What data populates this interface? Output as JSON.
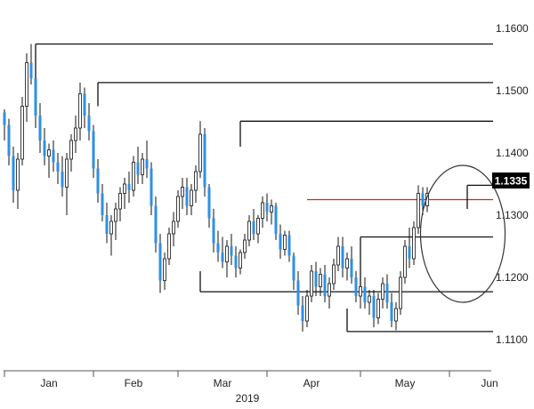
{
  "chart_data": {
    "type": "candlestick",
    "title": "",
    "xlabel": "",
    "ylabel": "",
    "x_year_label": "2019",
    "ylim": [
      1.105,
      1.164
    ],
    "xlim": [
      0,
      110
    ],
    "yticks": [
      {
        "value": 1.16,
        "label": "1.1600"
      },
      {
        "value": 1.15,
        "label": "1.1500"
      },
      {
        "value": 1.14,
        "label": "1.1400"
      },
      {
        "value": 1.13,
        "label": "1.1300"
      },
      {
        "value": 1.12,
        "label": "1.1200"
      },
      {
        "value": 1.11,
        "label": "1.1100"
      }
    ],
    "month_labels": [
      {
        "label": "Jan",
        "x": 10
      },
      {
        "label": "Feb",
        "x": 29
      },
      {
        "label": "Mar",
        "x": 49
      },
      {
        "label": "Apr",
        "x": 69
      },
      {
        "label": "May",
        "x": 90
      },
      {
        "label": "Jun",
        "x": 109
      }
    ],
    "month_tick_x": [
      0,
      20,
      39,
      59,
      80,
      100
    ],
    "current_price": {
      "value": 1.1335,
      "label": "1.1335"
    },
    "levels": [
      {
        "name": "resistance-1",
        "y": 1.1575,
        "x_start": 7,
        "x_end": 117,
        "color": "#111111",
        "tick_down_to": 1.1515
      },
      {
        "name": "resistance-2",
        "y": 1.1513,
        "x_start": 21,
        "x_end": 117,
        "color": "#111111",
        "tick_down_to": 1.1475
      },
      {
        "name": "resistance-3",
        "y": 1.1451,
        "x_start": 53,
        "x_end": 117,
        "color": "#111111",
        "tick_down_to": 1.141
      },
      {
        "name": "red-level",
        "y": 1.1325,
        "x_start": 68,
        "x_end": 111,
        "color": "#e0201b",
        "tick_down_to": null
      },
      {
        "name": "range-top",
        "y": 1.1265,
        "x_start": 80,
        "x_end": 117,
        "color": "#111111",
        "tick_down_to": 1.118,
        "tick_x": 80
      },
      {
        "name": "range-bottom",
        "y": 1.1177,
        "x_start": 44,
        "x_end": 117,
        "color": "#111111",
        "tick_up_to": 1.121,
        "tick_x": 44
      },
      {
        "name": "support-low",
        "y": 1.1113,
        "x_start": 77,
        "x_end": 117,
        "color": "#111111",
        "tick_up_to": 1.115,
        "tick_x": 77
      },
      {
        "name": "current-box-line",
        "y": 1.1348,
        "x_start": 104,
        "x_end": 110,
        "color": "#111111",
        "tick_down_to": 1.131,
        "tick_x": 104
      }
    ],
    "ellipse": {
      "cx": 103,
      "cy": 1.127,
      "rx": 9.5,
      "ry": 0.011
    },
    "candle_colors": {
      "up": "#ffffff",
      "down": "#2f8fe6",
      "wick": "#111111"
    },
    "candles": [
      [
        1.1465,
        1.147,
        1.142,
        1.1445
      ],
      [
        1.1445,
        1.1455,
        1.138,
        1.1395
      ],
      [
        1.1395,
        1.141,
        1.132,
        1.134
      ],
      [
        1.134,
        1.14,
        1.131,
        1.139
      ],
      [
        1.139,
        1.149,
        1.138,
        1.1475
      ],
      [
        1.1475,
        1.156,
        1.145,
        1.1545
      ],
      [
        1.1545,
        1.1575,
        1.151,
        1.152
      ],
      [
        1.152,
        1.154,
        1.144,
        1.146
      ],
      [
        1.146,
        1.148,
        1.14,
        1.142
      ],
      [
        1.142,
        1.144,
        1.138,
        1.1395
      ],
      [
        1.1395,
        1.1415,
        1.136,
        1.1405
      ],
      [
        1.1405,
        1.142,
        1.137,
        1.1385
      ],
      [
        1.1385,
        1.14,
        1.135,
        1.137
      ],
      [
        1.137,
        1.1395,
        1.133,
        1.1345
      ],
      [
        1.1345,
        1.14,
        1.13,
        1.139
      ],
      [
        1.139,
        1.143,
        1.137,
        1.142
      ],
      [
        1.142,
        1.146,
        1.14,
        1.144
      ],
      [
        1.144,
        1.1513,
        1.142,
        1.1495
      ],
      [
        1.1495,
        1.1505,
        1.144,
        1.146
      ],
      [
        1.146,
        1.148,
        1.142,
        1.1435
      ],
      [
        1.1435,
        1.1445,
        1.136,
        1.1375
      ],
      [
        1.1375,
        1.139,
        1.132,
        1.1335
      ],
      [
        1.1335,
        1.135,
        1.129,
        1.13
      ],
      [
        1.13,
        1.132,
        1.1255,
        1.127
      ],
      [
        1.127,
        1.13,
        1.1235,
        1.129
      ],
      [
        1.129,
        1.132,
        1.126,
        1.131
      ],
      [
        1.131,
        1.1345,
        1.129,
        1.1335
      ],
      [
        1.1335,
        1.136,
        1.131,
        1.135
      ],
      [
        1.135,
        1.137,
        1.132,
        1.134
      ],
      [
        1.134,
        1.1395,
        1.133,
        1.1385
      ],
      [
        1.1385,
        1.141,
        1.135,
        1.1365
      ],
      [
        1.1365,
        1.14,
        1.135,
        1.139
      ],
      [
        1.139,
        1.142,
        1.136,
        1.1375
      ],
      [
        1.1375,
        1.1385,
        1.13,
        1.1315
      ],
      [
        1.1315,
        1.133,
        1.124,
        1.1255
      ],
      [
        1.1255,
        1.127,
        1.1175,
        1.1195
      ],
      [
        1.1195,
        1.124,
        1.118,
        1.123
      ],
      [
        1.123,
        1.128,
        1.122,
        1.127
      ],
      [
        1.127,
        1.1305,
        1.125,
        1.129
      ],
      [
        1.129,
        1.134,
        1.128,
        1.133
      ],
      [
        1.133,
        1.136,
        1.131,
        1.1345
      ],
      [
        1.1345,
        1.136,
        1.13,
        1.1315
      ],
      [
        1.1315,
        1.135,
        1.13,
        1.134
      ],
      [
        1.134,
        1.138,
        1.132,
        1.137
      ],
      [
        1.137,
        1.1451,
        1.136,
        1.143
      ],
      [
        1.143,
        1.144,
        1.133,
        1.1345
      ],
      [
        1.1345,
        1.135,
        1.128,
        1.1295
      ],
      [
        1.1295,
        1.131,
        1.124,
        1.1255
      ],
      [
        1.1255,
        1.1275,
        1.1225,
        1.124
      ],
      [
        1.124,
        1.1265,
        1.1215,
        1.1225
      ],
      [
        1.1225,
        1.126,
        1.12,
        1.125
      ],
      [
        1.125,
        1.127,
        1.122,
        1.1235
      ],
      [
        1.1235,
        1.125,
        1.12,
        1.1215
      ],
      [
        1.1215,
        1.1245,
        1.1205,
        1.124
      ],
      [
        1.124,
        1.127,
        1.123,
        1.126
      ],
      [
        1.126,
        1.13,
        1.125,
        1.129
      ],
      [
        1.129,
        1.131,
        1.126,
        1.127
      ],
      [
        1.127,
        1.13,
        1.1255,
        1.1295
      ],
      [
        1.1295,
        1.133,
        1.128,
        1.132
      ],
      [
        1.132,
        1.1335,
        1.129,
        1.1305
      ],
      [
        1.1305,
        1.1325,
        1.1285,
        1.1315
      ],
      [
        1.1315,
        1.132,
        1.126,
        1.127
      ],
      [
        1.127,
        1.1285,
        1.123,
        1.1245
      ],
      [
        1.1245,
        1.1275,
        1.1235,
        1.1268
      ],
      [
        1.1268,
        1.1275,
        1.1225,
        1.1235
      ],
      [
        1.1235,
        1.124,
        1.118,
        1.1195
      ],
      [
        1.1195,
        1.121,
        1.114,
        1.1155
      ],
      [
        1.1155,
        1.117,
        1.1113,
        1.113
      ],
      [
        1.113,
        1.118,
        1.112,
        1.117
      ],
      [
        1.117,
        1.122,
        1.116,
        1.121
      ],
      [
        1.121,
        1.1225,
        1.117,
        1.1185
      ],
      [
        1.1185,
        1.1215,
        1.117,
        1.1205
      ],
      [
        1.1205,
        1.122,
        1.116,
        1.117
      ],
      [
        1.117,
        1.12,
        1.115,
        1.119
      ],
      [
        1.119,
        1.123,
        1.118,
        1.122
      ],
      [
        1.122,
        1.1265,
        1.121,
        1.125
      ],
      [
        1.125,
        1.1265,
        1.12,
        1.1215
      ],
      [
        1.1215,
        1.124,
        1.1195,
        1.123
      ],
      [
        1.123,
        1.125,
        1.119,
        1.12
      ],
      [
        1.12,
        1.121,
        1.116,
        1.117
      ],
      [
        1.117,
        1.12,
        1.115,
        1.1185
      ],
      [
        1.1185,
        1.12,
        1.115,
        1.116
      ],
      [
        1.116,
        1.118,
        1.114,
        1.117
      ],
      [
        1.117,
        1.118,
        1.112,
        1.1135
      ],
      [
        1.1135,
        1.1175,
        1.1125,
        1.1165
      ],
      [
        1.1165,
        1.12,
        1.115,
        1.119
      ],
      [
        1.119,
        1.1205,
        1.115,
        1.116
      ],
      [
        1.116,
        1.1175,
        1.112,
        1.113
      ],
      [
        1.113,
        1.116,
        1.1115,
        1.115
      ],
      [
        1.115,
        1.121,
        1.114,
        1.12
      ],
      [
        1.12,
        1.126,
        1.119,
        1.125
      ],
      [
        1.125,
        1.128,
        1.1215,
        1.123
      ],
      [
        1.123,
        1.129,
        1.122,
        1.128
      ],
      [
        1.128,
        1.1348,
        1.127,
        1.1335
      ],
      [
        1.1335,
        1.1345,
        1.13,
        1.1315
      ],
      [
        1.1315,
        1.1345,
        1.1305,
        1.1335
      ]
    ]
  }
}
